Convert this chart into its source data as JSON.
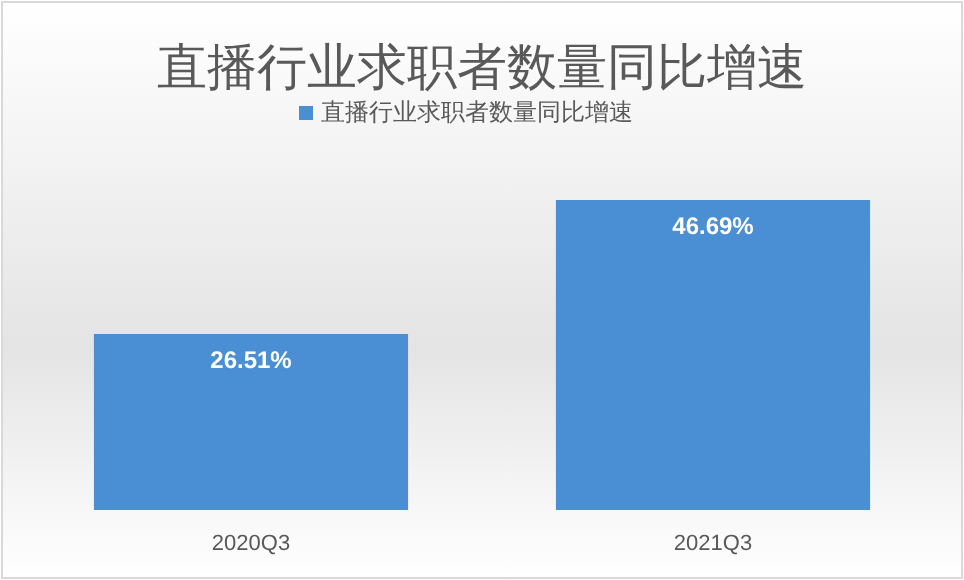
{
  "chart_data": {
    "type": "bar",
    "title": "直播行业求职者数量同比增速",
    "categories": [
      "2020Q3",
      "2021Q3"
    ],
    "series": [
      {
        "name": "直播行业求职者数量同比增速",
        "color": "#4a8fd4",
        "values": [
          26.51,
          46.69
        ],
        "value_labels": [
          "26.51%",
          "46.69%"
        ]
      }
    ],
    "legend": "top",
    "grid": false
  }
}
